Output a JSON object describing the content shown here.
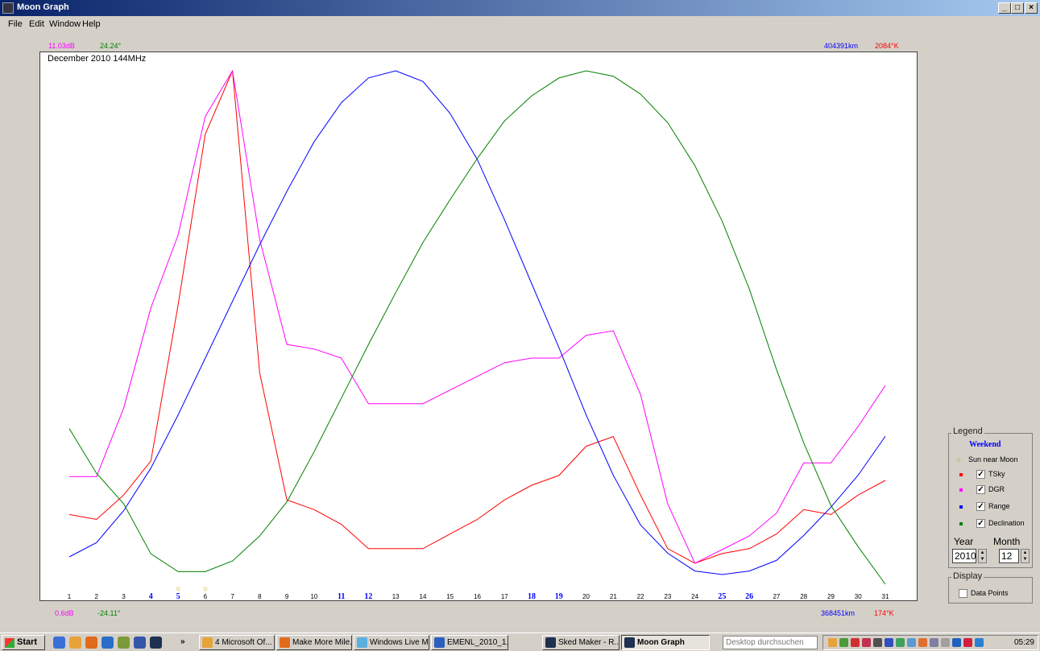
{
  "window": {
    "title": "Moon Graph",
    "min": "_",
    "max": "□",
    "close": "×"
  },
  "menu": [
    "File",
    "Edit",
    "Window",
    "Help"
  ],
  "scales": {
    "dgr_max": "11.03dB",
    "dec_max": "24.24°",
    "range_max": "404391km",
    "tsky_max": "2084°K",
    "dgr_min": "0.6dB",
    "dec_min": "-24.11°",
    "range_min": "368451km",
    "tsky_min": "174°K"
  },
  "colors": {
    "tsky": "#ff0000",
    "dgr": "#ff00ff",
    "range": "#0000ff",
    "declination": "#008000",
    "weekend": "#0000ff"
  },
  "chart_data": {
    "type": "line",
    "title": "December 2010 144MHz",
    "x": [
      1,
      2,
      3,
      4,
      5,
      6,
      7,
      8,
      9,
      10,
      11,
      12,
      13,
      14,
      15,
      16,
      17,
      18,
      19,
      20,
      21,
      22,
      23,
      24,
      25,
      26,
      27,
      28,
      29,
      30,
      31
    ],
    "weekend_days": [
      4,
      5,
      11,
      12,
      18,
      19,
      25,
      26
    ],
    "sun_near_moon_days": [
      5,
      6
    ],
    "series": [
      {
        "name": "TSky",
        "color": "#ff0000",
        "values": [
          0.09,
          0.08,
          0.13,
          0.2,
          0.52,
          0.87,
          1.0,
          0.38,
          0.12,
          0.1,
          0.07,
          0.02,
          0.02,
          0.02,
          0.05,
          0.08,
          0.12,
          0.15,
          0.17,
          0.23,
          0.25,
          0.13,
          0.02,
          -0.01,
          0.01,
          0.02,
          0.05,
          0.1,
          0.09,
          0.13,
          0.16
        ]
      },
      {
        "name": "DGR",
        "color": "#ff00ff",
        "values": [
          0.27,
          0.27,
          0.42,
          0.64,
          0.8,
          1.06,
          1.16,
          0.79,
          0.56,
          0.55,
          0.53,
          0.43,
          0.43,
          0.43,
          0.46,
          0.49,
          0.52,
          0.53,
          0.53,
          0.58,
          0.59,
          0.45,
          0.21,
          0.08,
          0.11,
          0.14,
          0.19,
          0.3,
          0.3,
          0.38,
          0.47
        ]
      },
      {
        "name": "Range",
        "color": "#0000ff",
        "values": [
          0.05,
          0.09,
          0.18,
          0.3,
          0.45,
          0.61,
          0.77,
          0.93,
          1.08,
          1.22,
          1.33,
          1.4,
          1.42,
          1.39,
          1.3,
          1.17,
          1.0,
          0.82,
          0.64,
          0.45,
          0.28,
          0.14,
          0.06,
          0.01,
          0.0,
          0.01,
          0.04,
          0.11,
          0.19,
          0.28,
          0.39
        ]
      },
      {
        "name": "Declination",
        "color": "#008000",
        "values": [
          -0.2,
          -0.45,
          -0.62,
          -0.9,
          -1.0,
          -1.0,
          -0.94,
          -0.8,
          -0.61,
          -0.33,
          -0.03,
          0.27,
          0.56,
          0.84,
          1.08,
          1.31,
          1.52,
          1.66,
          1.76,
          1.8,
          1.77,
          1.67,
          1.51,
          1.27,
          0.96,
          0.58,
          0.13,
          -0.28,
          -0.63,
          -0.86,
          -1.07
        ]
      }
    ],
    "grid": false
  },
  "legend": {
    "title": "Legend",
    "weekend": "Weekend",
    "sun": "Sun near Moon",
    "items": [
      {
        "label": "TSky",
        "color": "#ff0000",
        "checked": "✓"
      },
      {
        "label": "DGR",
        "color": "#ff00ff",
        "checked": "✓"
      },
      {
        "label": "Range",
        "color": "#0000ff",
        "checked": "✓"
      },
      {
        "label": "Declination",
        "color": "#008000",
        "checked": "✓"
      }
    ],
    "year_label": "Year",
    "month_label": "Month",
    "year": "2010",
    "month": "12"
  },
  "display": {
    "title": "Display",
    "data_points": "Data Points"
  },
  "taskbar": {
    "start": "Start",
    "tasks": [
      "» ",
      "4 Microsoft Of...",
      "Make More Mile...",
      "Windows Live M...",
      "EMENL_2010_1...",
      "Sked Maker - R...",
      "Moon Graph"
    ],
    "search": "Desktop durchsuchen",
    "clock": "05:29"
  }
}
